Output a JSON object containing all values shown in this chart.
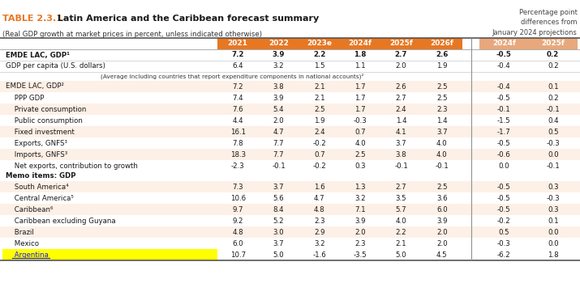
{
  "title_prefix": "TABLE 2.3.1",
  "title_main": " Latin America and the Caribbean forecast summary",
  "subtitle": "(Real GDP growth at market prices in percent, unless indicated otherwise)",
  "top_right_text": "Percentage point\ndifferences from\nJanuary 2024 projections",
  "header_cols": [
    "2021",
    "2022",
    "2023e",
    "2024f",
    "2025f",
    "2026f",
    "2024f",
    "2025f"
  ],
  "header_bg_main": "#E87722",
  "header_bg_diff": "#E8A87C",
  "rows": [
    {
      "label": "EMDE LAC, GDP¹",
      "values": [
        "7.2",
        "3.9",
        "2.2",
        "1.8",
        "2.7",
        "2.6",
        "-0.5",
        "0.2"
      ],
      "bg": "#FFFFFF",
      "bold": true,
      "indent": 0
    },
    {
      "label": "GDP per capita (U.S. dollars)",
      "values": [
        "6.4",
        "3.2",
        "1.5",
        "1.1",
        "2.0",
        "1.9",
        "-0.4",
        "0.2"
      ],
      "bg": "#FFFFFF",
      "bold": false,
      "indent": 0
    },
    {
      "label": "(Average including countries that report expenditure components in national accounts)²",
      "values": [
        "",
        "",
        "",
        "",
        "",
        "",
        "",
        ""
      ],
      "bg": "#FFFFFF",
      "bold": false,
      "indent": 0,
      "center": true,
      "small": true
    },
    {
      "label": "EMDE LAC, GDP²",
      "values": [
        "7.2",
        "3.8",
        "2.1",
        "1.7",
        "2.6",
        "2.5",
        "-0.4",
        "0.1"
      ],
      "bg": "#FDF0E6",
      "bold": false,
      "indent": 0
    },
    {
      "label": " PPP GDP",
      "values": [
        "7.4",
        "3.9",
        "2.1",
        "1.7",
        "2.7",
        "2.5",
        "-0.5",
        "0.2"
      ],
      "bg": "#FFFFFF",
      "bold": false,
      "indent": 1
    },
    {
      "label": " Private consumption",
      "values": [
        "7.6",
        "5.4",
        "2.5",
        "1.7",
        "2.4",
        "2.3",
        "-0.1",
        "-0.1"
      ],
      "bg": "#FDF0E6",
      "bold": false,
      "indent": 1
    },
    {
      "label": " Public consumption",
      "values": [
        "4.4",
        "2.0",
        "1.9",
        "-0.3",
        "1.4",
        "1.4",
        "-1.5",
        "0.4"
      ],
      "bg": "#FFFFFF",
      "bold": false,
      "indent": 1
    },
    {
      "label": " Fixed investment",
      "values": [
        "16.1",
        "4.7",
        "2.4",
        "0.7",
        "4.1",
        "3.7",
        "-1.7",
        "0.5"
      ],
      "bg": "#FDF0E6",
      "bold": false,
      "indent": 1
    },
    {
      "label": " Exports, GNFS³",
      "values": [
        "7.8",
        "7.7",
        "-0.2",
        "4.0",
        "3.7",
        "4.0",
        "-0.5",
        "-0.3"
      ],
      "bg": "#FFFFFF",
      "bold": false,
      "indent": 1
    },
    {
      "label": " Imports, GNFS³",
      "values": [
        "18.3",
        "7.7",
        "0.7",
        "2.5",
        "3.8",
        "4.0",
        "-0.6",
        "0.0"
      ],
      "bg": "#FDF0E6",
      "bold": false,
      "indent": 1
    },
    {
      "label": " Net exports, contribution to growth",
      "values": [
        "-2.3",
        "-0.1",
        "-0.2",
        "0.3",
        "-0.1",
        "-0.1",
        "0.0",
        "-0.1"
      ],
      "bg": "#FFFFFF",
      "bold": false,
      "indent": 1
    },
    {
      "label": "Memo items: GDP",
      "values": [
        "",
        "",
        "",
        "",
        "",
        "",
        "",
        ""
      ],
      "bg": "#FFFFFF",
      "bold": true,
      "indent": 0
    },
    {
      "label": " South America⁴",
      "values": [
        "7.3",
        "3.7",
        "1.6",
        "1.3",
        "2.7",
        "2.5",
        "-0.5",
        "0.3"
      ],
      "bg": "#FDF0E6",
      "bold": false,
      "indent": 1
    },
    {
      "label": " Central America⁵",
      "values": [
        "10.6",
        "5.6",
        "4.7",
        "3.2",
        "3.5",
        "3.6",
        "-0.5",
        "-0.3"
      ],
      "bg": "#FFFFFF",
      "bold": false,
      "indent": 1
    },
    {
      "label": " Caribbean⁶",
      "values": [
        "9.7",
        "8.4",
        "4.8",
        "7.1",
        "5.7",
        "6.0",
        "-0.5",
        "0.3"
      ],
      "bg": "#FDF0E6",
      "bold": false,
      "indent": 1
    },
    {
      "label": " Caribbean excluding Guyana",
      "values": [
        "9.2",
        "5.2",
        "2.3",
        "3.9",
        "4.0",
        "3.9",
        "-0.2",
        "0.1"
      ],
      "bg": "#FFFFFF",
      "bold": false,
      "indent": 1
    },
    {
      "label": " Brazil",
      "values": [
        "4.8",
        "3.0",
        "2.9",
        "2.0",
        "2.2",
        "2.0",
        "0.5",
        "0.0"
      ],
      "bg": "#FDF0E6",
      "bold": false,
      "indent": 1
    },
    {
      "label": " Mexico",
      "values": [
        "6.0",
        "3.7",
        "3.2",
        "2.3",
        "2.1",
        "2.0",
        "-0.3",
        "0.0"
      ],
      "bg": "#FFFFFF",
      "bold": false,
      "indent": 1
    },
    {
      "label": " Argentina",
      "values": [
        "10.7",
        "5.0",
        "-1.6",
        "-3.5",
        "5.0",
        "4.5",
        "-6.2",
        "1.8"
      ],
      "bg": "#FFFF00",
      "bold": false,
      "indent": 1,
      "label_color": "#1a1aff",
      "underline": true
    }
  ]
}
